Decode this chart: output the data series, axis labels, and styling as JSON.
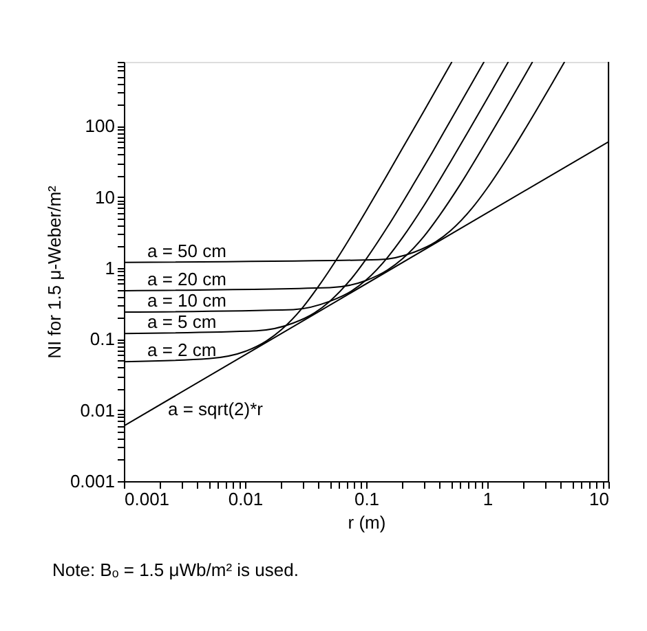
{
  "chart_data": {
    "type": "line",
    "xlabel": "r (m)",
    "ylabel": "NI for 1.5 μ-Weber/m²",
    "log": "xy",
    "grid": false,
    "legend": false,
    "marker": "none",
    "line_style": "solid",
    "xlim": [
      0.001,
      10
    ],
    "ylim": [
      0.001,
      800
    ],
    "xticks": [
      0.001,
      {
        "value": 0.002,
        "label": null
      },
      {
        "value": 0.003,
        "label": null
      },
      {
        "value": 0.004,
        "label": null
      },
      {
        "value": 0.005,
        "label": null
      },
      {
        "value": 0.006,
        "label": null
      },
      {
        "value": 0.007,
        "label": null
      },
      {
        "value": 0.008,
        "label": null
      },
      {
        "value": 0.009,
        "label": null
      },
      0.01,
      {
        "value": 0.02,
        "label": null
      },
      {
        "value": 0.03,
        "label": null
      },
      {
        "value": 0.04,
        "label": null
      },
      {
        "value": 0.05,
        "label": null
      },
      {
        "value": 0.06,
        "label": null
      },
      {
        "value": 0.07,
        "label": null
      },
      {
        "value": 0.08,
        "label": null
      },
      {
        "value": 0.09,
        "label": null
      },
      0.1,
      {
        "value": 0.2,
        "label": null
      },
      {
        "value": 0.3,
        "label": null
      },
      {
        "value": 0.4,
        "label": null
      },
      {
        "value": 0.5,
        "label": null
      },
      {
        "value": 0.6,
        "label": null
      },
      {
        "value": 0.7,
        "label": null
      },
      {
        "value": 0.8,
        "label": null
      },
      {
        "value": 0.9,
        "label": null
      },
      1,
      {
        "value": 2,
        "label": null
      },
      {
        "value": 3,
        "label": null
      },
      {
        "value": 4,
        "label": null
      },
      {
        "value": 5,
        "label": null
      },
      {
        "value": 6,
        "label": null
      },
      {
        "value": 7,
        "label": null
      },
      {
        "value": 8,
        "label": null
      },
      {
        "value": 9,
        "label": null
      },
      10
    ],
    "yticks": [
      0.001,
      {
        "value": 0.002,
        "label": null
      },
      {
        "value": 0.003,
        "label": null
      },
      {
        "value": 0.004,
        "label": null
      },
      {
        "value": 0.005,
        "label": null
      },
      {
        "value": 0.006,
        "label": null
      },
      {
        "value": 0.007,
        "label": null
      },
      {
        "value": 0.008,
        "label": null
      },
      {
        "value": 0.009,
        "label": null
      },
      0.01,
      {
        "value": 0.02,
        "label": null
      },
      {
        "value": 0.03,
        "label": null
      },
      {
        "value": 0.04,
        "label": null
      },
      {
        "value": 0.05,
        "label": null
      },
      {
        "value": 0.06,
        "label": null
      },
      {
        "value": 0.07,
        "label": null
      },
      {
        "value": 0.08,
        "label": null
      },
      {
        "value": 0.09,
        "label": null
      },
      0.1,
      {
        "value": 0.2,
        "label": null
      },
      {
        "value": 0.3,
        "label": null
      },
      {
        "value": 0.4,
        "label": null
      },
      {
        "value": 0.5,
        "label": null
      },
      {
        "value": 0.6,
        "label": null
      },
      {
        "value": 0.7,
        "label": null
      },
      {
        "value": 0.8,
        "label": null
      },
      {
        "value": 0.9,
        "label": null
      },
      1,
      {
        "value": 2,
        "label": null
      },
      {
        "value": 3,
        "label": null
      },
      {
        "value": 4,
        "label": null
      },
      {
        "value": 5,
        "label": null
      },
      {
        "value": 6,
        "label": null
      },
      {
        "value": 7,
        "label": null
      },
      {
        "value": 8,
        "label": null
      },
      {
        "value": 9,
        "label": null
      },
      10,
      {
        "value": 20,
        "label": null
      },
      {
        "value": 30,
        "label": null
      },
      {
        "value": 40,
        "label": null
      },
      {
        "value": 50,
        "label": null
      },
      {
        "value": 60,
        "label": null
      },
      {
        "value": 70,
        "label": null
      },
      {
        "value": 80,
        "label": null
      },
      {
        "value": 90,
        "label": null
      },
      100,
      {
        "value": 200,
        "label": null
      },
      {
        "value": 300,
        "label": null
      },
      {
        "value": 400,
        "label": null
      },
      {
        "value": 500,
        "label": null
      },
      {
        "value": 600,
        "label": null
      },
      {
        "value": 700,
        "label": null
      },
      {
        "value": 800,
        "label": null
      }
    ],
    "series": [
      {
        "name": "a = 50 cm",
        "color": "#000000",
        "x": [
          0.001,
          0.125,
          0.25,
          0.375,
          0.5,
          0.75,
          1,
          1.5,
          2.5,
          3.5,
          4.34
        ],
        "values": [
          1.2,
          1.31,
          1.68,
          2.34,
          3.39,
          7.0,
          13.4,
          38,
          159,
          424,
          800
        ]
      },
      {
        "name": "a = 20 cm",
        "color": "#000000",
        "x": [
          0.001,
          0.05,
          0.1,
          0.15,
          0.2,
          0.3,
          0.4,
          0.6,
          1,
          1.4,
          2,
          2.36
        ],
        "values": [
          0.48,
          0.53,
          0.67,
          0.94,
          1.36,
          2.8,
          5.4,
          15.2,
          64,
          170,
          487,
          800
        ]
      },
      {
        "name": "a = 10 cm",
        "color": "#000000",
        "x": [
          0.001,
          0.025,
          0.05,
          0.075,
          0.1,
          0.15,
          0.2,
          0.3,
          0.5,
          0.7,
          1,
          1.49
        ],
        "values": [
          0.24,
          0.26,
          0.34,
          0.47,
          0.68,
          1.41,
          2.7,
          7.6,
          32,
          85,
          244,
          800
        ]
      },
      {
        "name": "a = 5 cm",
        "color": "#000000",
        "x": [
          0.001,
          0.0125,
          0.025,
          0.0375,
          0.05,
          0.075,
          0.1,
          0.15,
          0.25,
          0.35,
          0.5,
          0.75,
          0.94
        ],
        "values": [
          0.12,
          0.131,
          0.168,
          0.234,
          0.34,
          0.7,
          1.34,
          3.8,
          15.9,
          42,
          122,
          408,
          800
        ]
      },
      {
        "name": "a = 2 cm",
        "color": "#000000",
        "x": [
          0.001,
          0.005,
          0.01,
          0.015,
          0.02,
          0.03,
          0.04,
          0.06,
          0.1,
          0.14,
          0.2,
          0.3,
          0.51
        ],
        "values": [
          0.048,
          0.053,
          0.067,
          0.094,
          0.136,
          0.28,
          0.54,
          1.52,
          6.4,
          17,
          49,
          163,
          800
        ]
      },
      {
        "color": "#000000",
        "x": [
          0.001,
          10
        ],
        "values": [
          0.006,
          60
        ]
      }
    ],
    "annotations": [
      "a = sqrt(2)*r",
      "Note:   Bₒ = 1.5 μWb/m² is used."
    ]
  }
}
